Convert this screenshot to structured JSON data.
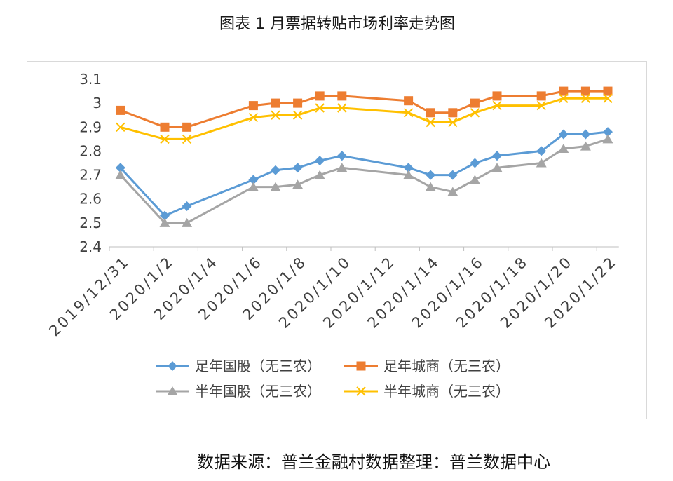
{
  "source": "数据来源：普兰金融村数据整理：普兰数据中心",
  "chart_data": {
    "type": "line",
    "title": "图表 1 月票据转贴市场利率走势图",
    "xlabel": "",
    "ylabel": "",
    "grid": false,
    "legend_position": "bottom",
    "x": [
      "2019/12/31",
      "2020/1/2",
      "2020/1/3",
      "2020/1/6",
      "2020/1/7",
      "2020/1/8",
      "2020/1/9",
      "2020/1/10",
      "2020/1/13",
      "2020/1/14",
      "2020/1/15",
      "2020/1/16",
      "2020/1/17",
      "2020/1/19",
      "2020/1/20",
      "2020/1/21",
      "2020/1/22"
    ],
    "xlim": [
      "2019/12/31",
      "2020/1/22"
    ],
    "x_tick_labels": [
      "2019/12/31",
      "2020/1/2",
      "2020/1/4",
      "2020/1/6",
      "2020/1/8",
      "2020/1/10",
      "2020/1/12",
      "2020/1/14",
      "2020/1/16",
      "2020/1/18",
      "2020/1/20",
      "2020/1/22"
    ],
    "ylim": [
      2.4,
      3.1
    ],
    "y_ticks": [
      2.4,
      2.5,
      2.6,
      2.7,
      2.8,
      2.9,
      3,
      3.1
    ],
    "y_tick_labels": [
      "2.4",
      "2.5",
      "2.6",
      "2.7",
      "2.8",
      "2.9",
      "3",
      "3.1"
    ],
    "series": [
      {
        "name": "足年国股（无三农）",
        "color": "#5B9BD5",
        "marker": "diamond",
        "values": [
          2.73,
          2.53,
          2.57,
          2.68,
          2.72,
          2.73,
          2.76,
          2.78,
          2.73,
          2.7,
          2.7,
          2.75,
          2.78,
          2.8,
          2.87,
          2.87,
          2.88
        ]
      },
      {
        "name": "足年城商（无三农）",
        "color": "#ED7D31",
        "marker": "square",
        "values": [
          2.97,
          2.9,
          2.9,
          2.99,
          3.0,
          3.0,
          3.03,
          3.03,
          3.01,
          2.96,
          2.96,
          3.0,
          3.03,
          3.03,
          3.05,
          3.05,
          3.05
        ]
      },
      {
        "name": "半年国股（无三农）",
        "color": "#A5A5A5",
        "marker": "triangle",
        "values": [
          2.7,
          2.5,
          2.5,
          2.65,
          2.65,
          2.66,
          2.7,
          2.73,
          2.7,
          2.65,
          2.63,
          2.68,
          2.73,
          2.75,
          2.81,
          2.82,
          2.85
        ]
      },
      {
        "name": "半年城商（无三农）",
        "color": "#FFC000",
        "marker": "x",
        "values": [
          2.9,
          2.85,
          2.85,
          2.94,
          2.95,
          2.95,
          2.98,
          2.98,
          2.96,
          2.92,
          2.92,
          2.96,
          2.99,
          2.99,
          3.02,
          3.02,
          3.02
        ]
      }
    ]
  }
}
